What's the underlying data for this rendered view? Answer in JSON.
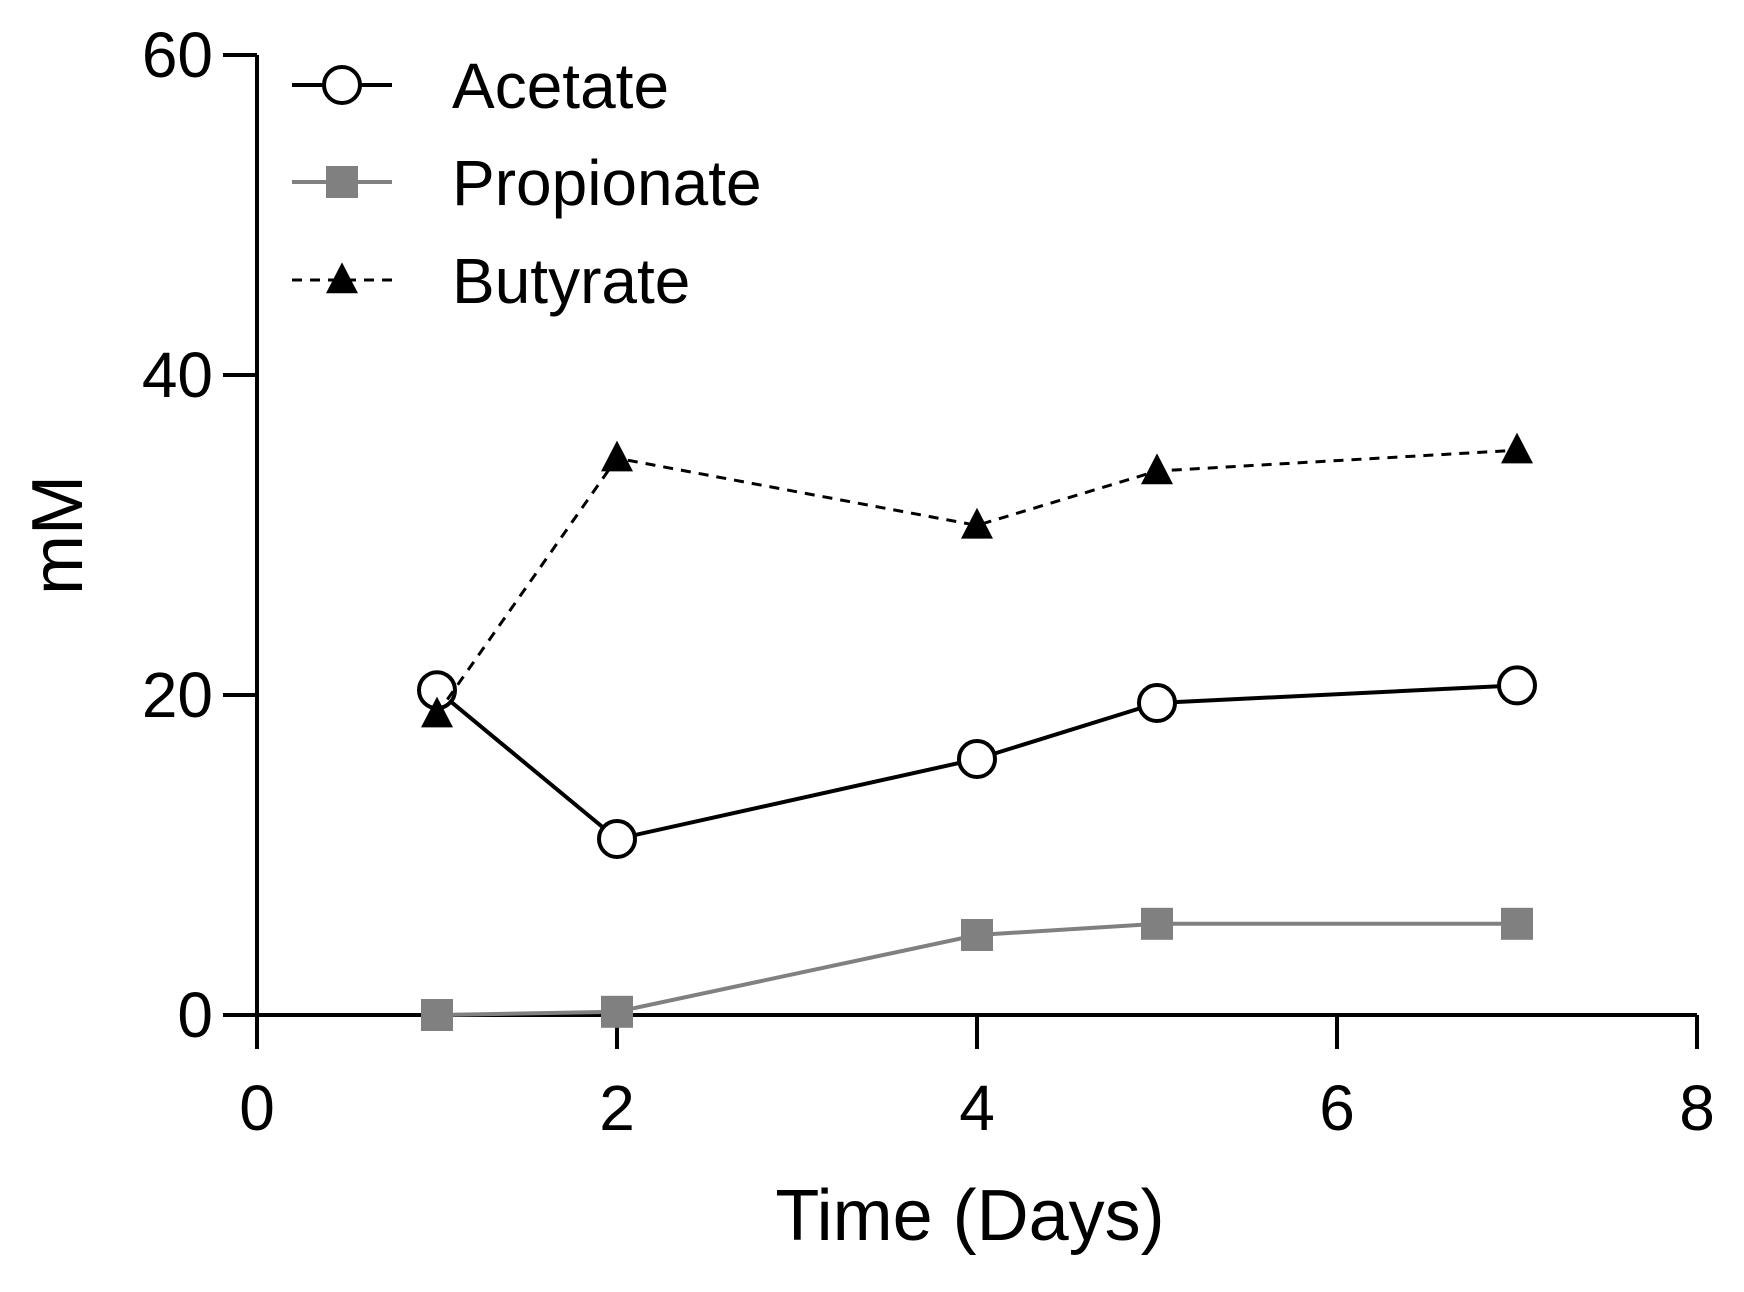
{
  "chart_data": {
    "type": "line",
    "title": "",
    "xlabel": "Time (Days)",
    "ylabel": "mM",
    "xlim": [
      0,
      8
    ],
    "ylim": [
      0,
      60
    ],
    "xticks": [
      0,
      2,
      4,
      6,
      8
    ],
    "yticks": [
      0,
      20,
      40,
      60
    ],
    "x": [
      1,
      2,
      4,
      5,
      7
    ],
    "grid": false,
    "legend_position": "top-left",
    "series": [
      {
        "name": "Acetate",
        "values": [
          20.3,
          11.0,
          16.0,
          19.5,
          20.6
        ],
        "color": "#000000",
        "marker": "circle-open",
        "line": "solid"
      },
      {
        "name": "Propionate",
        "values": [
          0.0,
          0.2,
          5.0,
          5.7,
          5.7
        ],
        "color": "#808080",
        "marker": "square",
        "line": "solid"
      },
      {
        "name": "Butyrate",
        "values": [
          18.8,
          34.8,
          30.6,
          34.0,
          35.3
        ],
        "color": "#000000",
        "marker": "triangle",
        "line": "dashed"
      }
    ]
  }
}
